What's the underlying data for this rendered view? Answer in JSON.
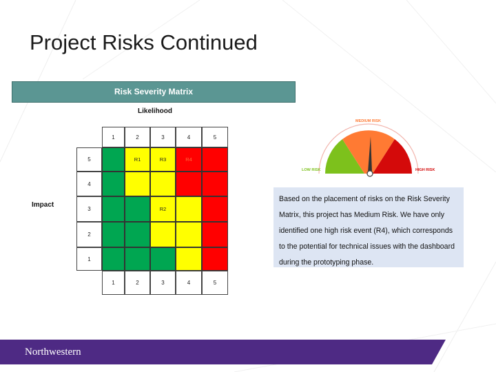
{
  "slide": {
    "title": "Project Risks Continued"
  },
  "matrix": {
    "header": "Risk Severity Matrix",
    "x_axis_label": "Likelihood",
    "y_axis_label": "Impact",
    "x_numbers": [
      "1",
      "2",
      "3",
      "4",
      "5"
    ],
    "rows": [
      {
        "impact": "5",
        "cells": [
          {
            "color": "green",
            "label": ""
          },
          {
            "color": "yellow",
            "label": "R1"
          },
          {
            "color": "yellow",
            "label": "R3"
          },
          {
            "color": "red",
            "label": "R4"
          },
          {
            "color": "red",
            "label": ""
          }
        ]
      },
      {
        "impact": "4",
        "cells": [
          {
            "color": "green",
            "label": ""
          },
          {
            "color": "yellow",
            "label": ""
          },
          {
            "color": "yellow",
            "label": ""
          },
          {
            "color": "red",
            "label": ""
          },
          {
            "color": "red",
            "label": ""
          }
        ]
      },
      {
        "impact": "3",
        "cells": [
          {
            "color": "green",
            "label": ""
          },
          {
            "color": "green",
            "label": ""
          },
          {
            "color": "yellow",
            "label": "R2"
          },
          {
            "color": "yellow",
            "label": ""
          },
          {
            "color": "red",
            "label": ""
          }
        ]
      },
      {
        "impact": "2",
        "cells": [
          {
            "color": "green",
            "label": ""
          },
          {
            "color": "green",
            "label": ""
          },
          {
            "color": "yellow",
            "label": ""
          },
          {
            "color": "yellow",
            "label": ""
          },
          {
            "color": "red",
            "label": ""
          }
        ]
      },
      {
        "impact": "1",
        "cells": [
          {
            "color": "green",
            "label": ""
          },
          {
            "color": "green",
            "label": ""
          },
          {
            "color": "green",
            "label": ""
          },
          {
            "color": "yellow",
            "label": ""
          },
          {
            "color": "red",
            "label": ""
          }
        ]
      }
    ],
    "colors": {
      "green": "#00a651",
      "yellow": "#ffff00",
      "red": "#ff0000",
      "header": "#5b9693"
    }
  },
  "gauge": {
    "low_label": "LOW RISK",
    "medium_label": "MEDIUM RISK",
    "high_label": "HIGH RISK",
    "current_level": "medium",
    "colors": {
      "low": "#7dc11c",
      "medium": "#ff7a33",
      "high": "#d40a0a"
    }
  },
  "summary": {
    "text": "Based on the placement of risks on the Risk Severity Matrix, this project has Medium Risk. We have only identified one high risk event (R4), which corresponds to the potential for technical issues with the dashboard during the prototyping phase."
  },
  "footer": {
    "brand": "Northwestern",
    "color": "#4e2a84"
  }
}
